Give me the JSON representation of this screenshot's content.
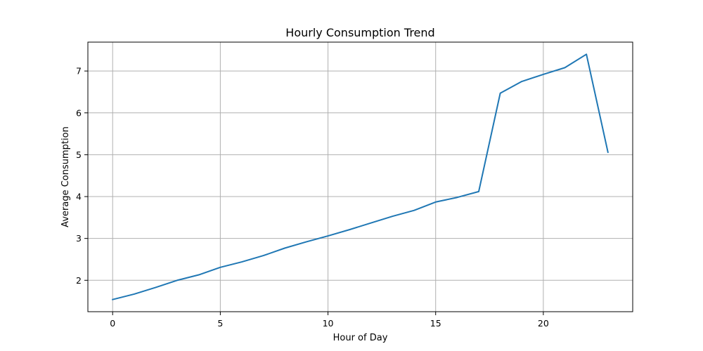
{
  "chart_data": {
    "type": "line",
    "title": "Hourly Consumption Trend",
    "xlabel": "Hour of Day",
    "ylabel": "Average Consumption",
    "xlim": [
      -1.15,
      24.15
    ],
    "ylim": [
      1.25,
      7.69
    ],
    "xticks": [
      0,
      5,
      10,
      15,
      20
    ],
    "yticks": [
      2,
      3,
      4,
      5,
      6,
      7
    ],
    "grid": true,
    "line_color": "#1f77b4",
    "series": [
      {
        "x": [
          0,
          1,
          2,
          3,
          4,
          5,
          6,
          7,
          8,
          9,
          10,
          11,
          12,
          13,
          14,
          15,
          16,
          17,
          18,
          19,
          20,
          21,
          22,
          23
        ],
        "values": [
          1.54,
          1.67,
          1.83,
          2.0,
          2.13,
          2.31,
          2.44,
          2.59,
          2.77,
          2.92,
          3.06,
          3.21,
          3.37,
          3.53,
          3.67,
          3.87,
          3.98,
          4.12,
          6.47,
          6.75,
          6.92,
          7.08,
          7.4,
          5.06
        ]
      }
    ]
  }
}
